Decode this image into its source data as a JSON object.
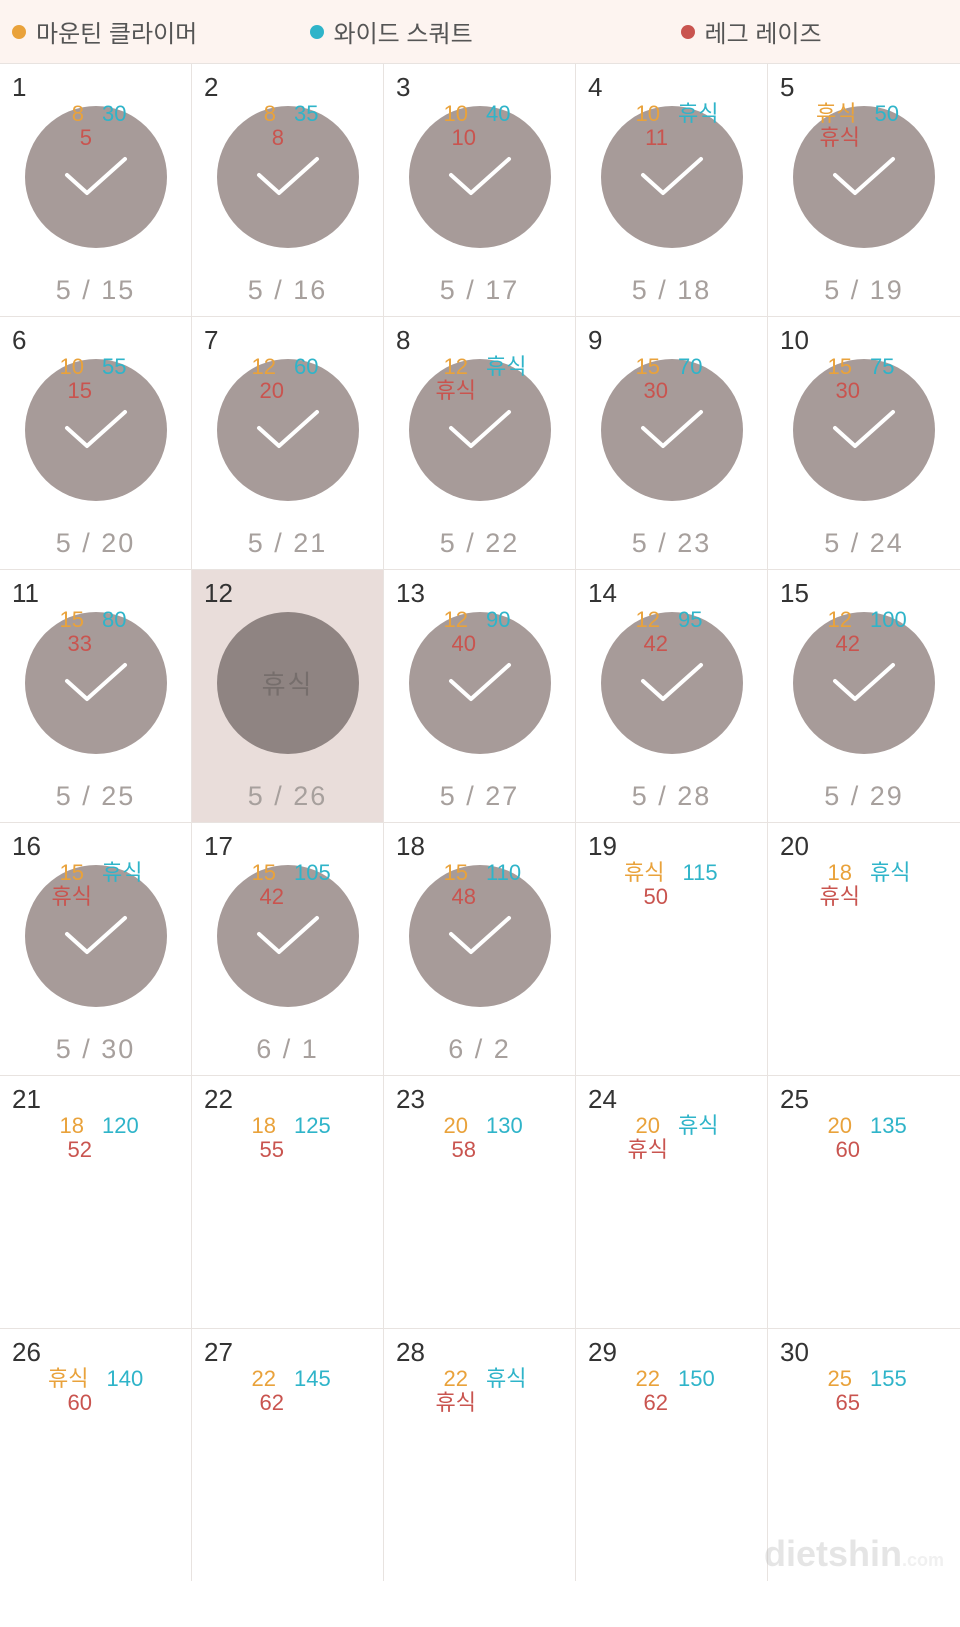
{
  "colors": {
    "legend_bg": "#fdf4f0",
    "orange": "#e9a23b",
    "cyan": "#2fb4c9",
    "red": "#c9544f",
    "circle": "#a79b99",
    "circle_dark": "#8f8482",
    "highlight_bg": "#e9ddda",
    "check": "#ffffff",
    "date_text": "#a7a09d",
    "daynum_text": "#333333",
    "rest_text": "#766e6c",
    "border": "#e8e3e0"
  },
  "legend": [
    {
      "label": "마운틴 클라이머",
      "color": "#e9a23b"
    },
    {
      "label": "와이드 스쿼트",
      "color": "#2fb4c9"
    },
    {
      "label": "레그 레이즈",
      "color": "#c9544f"
    }
  ],
  "rest_word": "휴식",
  "watermark": {
    "text": "dietshin",
    "suffix": ".com"
  },
  "days": [
    {
      "n": 1,
      "v1": "8",
      "v2": "30",
      "v3": "5",
      "done": true,
      "date": "5 / 15"
    },
    {
      "n": 2,
      "v1": "8",
      "v2": "35",
      "v3": "8",
      "done": true,
      "date": "5 / 16"
    },
    {
      "n": 3,
      "v1": "10",
      "v2": "40",
      "v3": "10",
      "done": true,
      "date": "5 / 17"
    },
    {
      "n": 4,
      "v1": "10",
      "v2": "휴식",
      "v3": "11",
      "done": true,
      "date": "5 / 18"
    },
    {
      "n": 5,
      "v1": "휴식",
      "v2": "50",
      "v3": "휴식",
      "done": true,
      "date": "5 / 19"
    },
    {
      "n": 6,
      "v1": "10",
      "v2": "55",
      "v3": "15",
      "done": true,
      "date": "5 / 20"
    },
    {
      "n": 7,
      "v1": "12",
      "v2": "60",
      "v3": "20",
      "done": true,
      "date": "5 / 21"
    },
    {
      "n": 8,
      "v1": "12",
      "v2": "휴식",
      "v3": "휴식",
      "done": true,
      "date": "5 / 22"
    },
    {
      "n": 9,
      "v1": "15",
      "v2": "70",
      "v3": "30",
      "done": true,
      "date": "5 / 23"
    },
    {
      "n": 10,
      "v1": "15",
      "v2": "75",
      "v3": "30",
      "done": true,
      "date": "5 / 24"
    },
    {
      "n": 11,
      "v1": "15",
      "v2": "80",
      "v3": "33",
      "done": true,
      "date": "5 / 25"
    },
    {
      "n": 12,
      "rest": true,
      "highlight": true,
      "date": "5 / 26"
    },
    {
      "n": 13,
      "v1": "12",
      "v2": "90",
      "v3": "40",
      "done": true,
      "date": "5 / 27"
    },
    {
      "n": 14,
      "v1": "12",
      "v2": "95",
      "v3": "42",
      "done": true,
      "date": "5 / 28"
    },
    {
      "n": 15,
      "v1": "12",
      "v2": "100",
      "v3": "42",
      "done": true,
      "date": "5 / 29"
    },
    {
      "n": 16,
      "v1": "15",
      "v2": "휴식",
      "v3": "휴식",
      "done": true,
      "date": "5 / 30"
    },
    {
      "n": 17,
      "v1": "15",
      "v2": "105",
      "v3": "42",
      "done": true,
      "date": "6 / 1"
    },
    {
      "n": 18,
      "v1": "15",
      "v2": "110",
      "v3": "48",
      "done": true,
      "date": "6 / 2"
    },
    {
      "n": 19,
      "v1": "휴식",
      "v2": "115",
      "v3": "50",
      "done": false
    },
    {
      "n": 20,
      "v1": "18",
      "v2": "휴식",
      "v3": "휴식",
      "done": false
    },
    {
      "n": 21,
      "v1": "18",
      "v2": "120",
      "v3": "52",
      "done": false
    },
    {
      "n": 22,
      "v1": "18",
      "v2": "125",
      "v3": "55",
      "done": false
    },
    {
      "n": 23,
      "v1": "20",
      "v2": "130",
      "v3": "58",
      "done": false
    },
    {
      "n": 24,
      "v1": "20",
      "v2": "휴식",
      "v3": "휴식",
      "done": false
    },
    {
      "n": 25,
      "v1": "20",
      "v2": "135",
      "v3": "60",
      "done": false
    },
    {
      "n": 26,
      "v1": "휴식",
      "v2": "140",
      "v3": "60",
      "done": false
    },
    {
      "n": 27,
      "v1": "22",
      "v2": "145",
      "v3": "62",
      "done": false
    },
    {
      "n": 28,
      "v1": "22",
      "v2": "휴식",
      "v3": "휴식",
      "done": false
    },
    {
      "n": 29,
      "v1": "22",
      "v2": "150",
      "v3": "62",
      "done": false
    },
    {
      "n": 30,
      "v1": "25",
      "v2": "155",
      "v3": "65",
      "done": false
    }
  ]
}
